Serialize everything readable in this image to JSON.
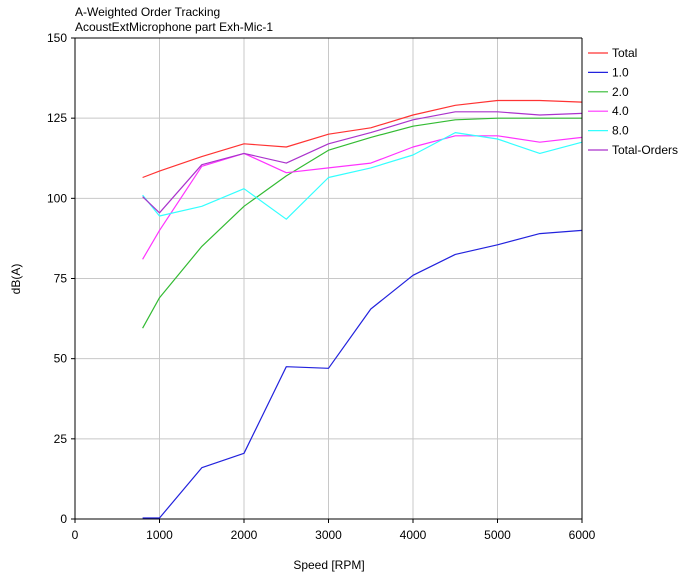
{
  "chart_data": {
    "type": "line",
    "title": "A-Weighted Order Tracking",
    "subtitle": "AcoustExtMicrophone part Exh-Mic-1",
    "xlabel": "Speed [RPM]",
    "ylabel": "dB(A)",
    "xlim": [
      0,
      6000
    ],
    "ylim": [
      0,
      150
    ],
    "xticks": [
      0,
      1000,
      2000,
      3000,
      4000,
      5000,
      6000
    ],
    "yticks": [
      0,
      25,
      50,
      75,
      100,
      125,
      150
    ],
    "grid": true,
    "legend_position": "right",
    "series": [
      {
        "name": "Total",
        "color": "#ff3333",
        "x": [
          800,
          1000,
          1500,
          2000,
          2500,
          3000,
          3500,
          4000,
          4500,
          5000,
          5500,
          6000
        ],
        "y": [
          106.5,
          108.5,
          113,
          117,
          116,
          120,
          122,
          126,
          129,
          130.5,
          130.5,
          130
        ]
      },
      {
        "name": "1.0",
        "color": "#2222dd",
        "x": [
          800,
          1000,
          1500,
          2000,
          2500,
          3000,
          3500,
          4000,
          4500,
          5000,
          5500,
          6000
        ],
        "y": [
          0.3,
          0.3,
          16,
          20.5,
          47.5,
          47,
          65.5,
          76,
          82.5,
          85.5,
          89,
          90
        ]
      },
      {
        "name": "2.0",
        "color": "#33bb33",
        "x": [
          800,
          1000,
          1500,
          2000,
          2500,
          3000,
          3500,
          4000,
          4500,
          5000,
          5500,
          6000
        ],
        "y": [
          59.5,
          69,
          85,
          97.5,
          107,
          115,
          119,
          122.5,
          124.5,
          125,
          125,
          125
        ]
      },
      {
        "name": "4.0",
        "color": "#ff33ff",
        "x": [
          800,
          1000,
          1500,
          2000,
          2500,
          3000,
          3500,
          4000,
          4500,
          5000,
          5500,
          6000
        ],
        "y": [
          81,
          90,
          110,
          114,
          108,
          109.5,
          111,
          116,
          119.5,
          119.5,
          117.5,
          119
        ]
      },
      {
        "name": "8.0",
        "color": "#33ffff",
        "x": [
          800,
          1000,
          1500,
          2000,
          2500,
          3000,
          3500,
          4000,
          4500,
          5000,
          5500,
          6000
        ],
        "y": [
          101,
          94.5,
          97.5,
          103,
          93.5,
          106.5,
          109.5,
          113.5,
          120.5,
          118.5,
          114,
          117.5
        ]
      },
      {
        "name": "Total-Orders",
        "color": "#aa33cc",
        "x": [
          800,
          1000,
          1500,
          2000,
          2500,
          3000,
          3500,
          4000,
          4500,
          5000,
          5500,
          6000
        ],
        "y": [
          100.5,
          95.5,
          110.5,
          114,
          111,
          117,
          120.5,
          124.5,
          127,
          127,
          126,
          126.5
        ]
      }
    ]
  }
}
